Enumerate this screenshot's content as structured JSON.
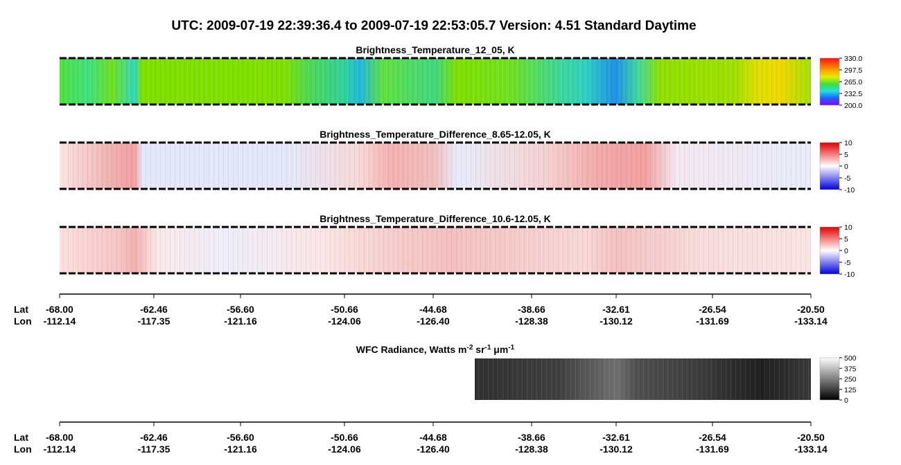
{
  "title": "UTC:  2009-07-19   22:39:36.4  to  2009-07-19   22:53:05.7    Version: 4.51  Standard Daytime",
  "panels": [
    {
      "title": "Brightness_Temperature_12_05, K",
      "colorbar": [
        "330.0",
        "297.5",
        "265.0",
        "232.5",
        "200.0"
      ]
    },
    {
      "title": "Brightness_Temperature_Difference_8.65-12.05, K",
      "colorbar": [
        "10",
        "5",
        "0",
        "-5",
        "-10"
      ]
    },
    {
      "title": "Brightness_Temperature_Difference_10.6-12.05, K",
      "colorbar": [
        "10",
        "5",
        "0",
        "-5",
        "-10"
      ]
    }
  ],
  "axis": {
    "lat_label": "Lat",
    "lon_label": "Lon",
    "lat": [
      "-68.00",
      "-62.46",
      "-56.60",
      "-50.66",
      "-44.68",
      "-38.66",
      "-32.61",
      "-26.54",
      "-20.50"
    ],
    "lon": [
      "-112.14",
      "-117.35",
      "-121.16",
      "-124.06",
      "-126.40",
      "-128.38",
      "-130.12",
      "-131.69",
      "-133.14"
    ]
  },
  "wfc": {
    "title_parts": [
      "WFC Radiance, Watts m",
      "-2",
      " sr",
      "-1",
      " μm",
      "-1"
    ],
    "colorbar": [
      "500",
      "375",
      "250",
      "125",
      "0"
    ]
  }
}
